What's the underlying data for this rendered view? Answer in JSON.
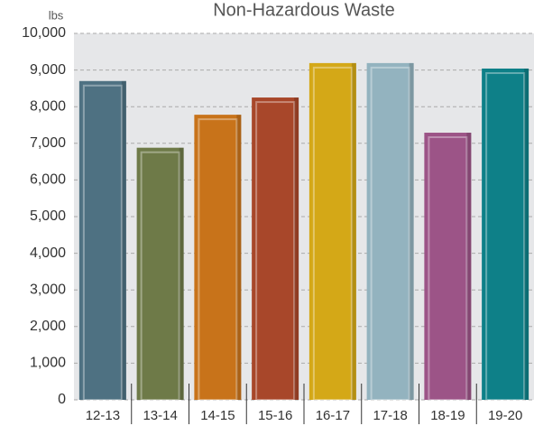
{
  "chart_data": {
    "type": "bar",
    "title": "Non-Hazardous Waste",
    "y_label": "lbs",
    "categories": [
      "12-13",
      "13-14",
      "14-15",
      "15-16",
      "16-17",
      "17-18",
      "18-19",
      "19-20"
    ],
    "values": [
      8700,
      6880,
      7780,
      8250,
      9190,
      9190,
      7290,
      9040
    ],
    "colors": [
      "#4e7182",
      "#6e7a48",
      "#c8731a",
      "#a8472a",
      "#d4a817",
      "#93b3bf",
      "#9c5487",
      "#0e8088"
    ],
    "ylim": [
      0,
      10000
    ],
    "yticks": [
      0,
      {
        "value": 1000,
        "label": "1,000"
      },
      {
        "value": 2000,
        "label": "2,000"
      },
      {
        "value": 3000,
        "label": "3,000"
      },
      {
        "value": 4000,
        "label": "4,000"
      },
      {
        "value": 5000,
        "label": "5,000"
      },
      {
        "value": 6000,
        "label": "6,000"
      },
      {
        "value": 7000,
        "label": "7,000"
      },
      {
        "value": 8000,
        "label": "8,000"
      },
      {
        "value": 9000,
        "label": "9,000"
      },
      {
        "value": 10000,
        "label": "10,000"
      }
    ],
    "grid": true
  }
}
